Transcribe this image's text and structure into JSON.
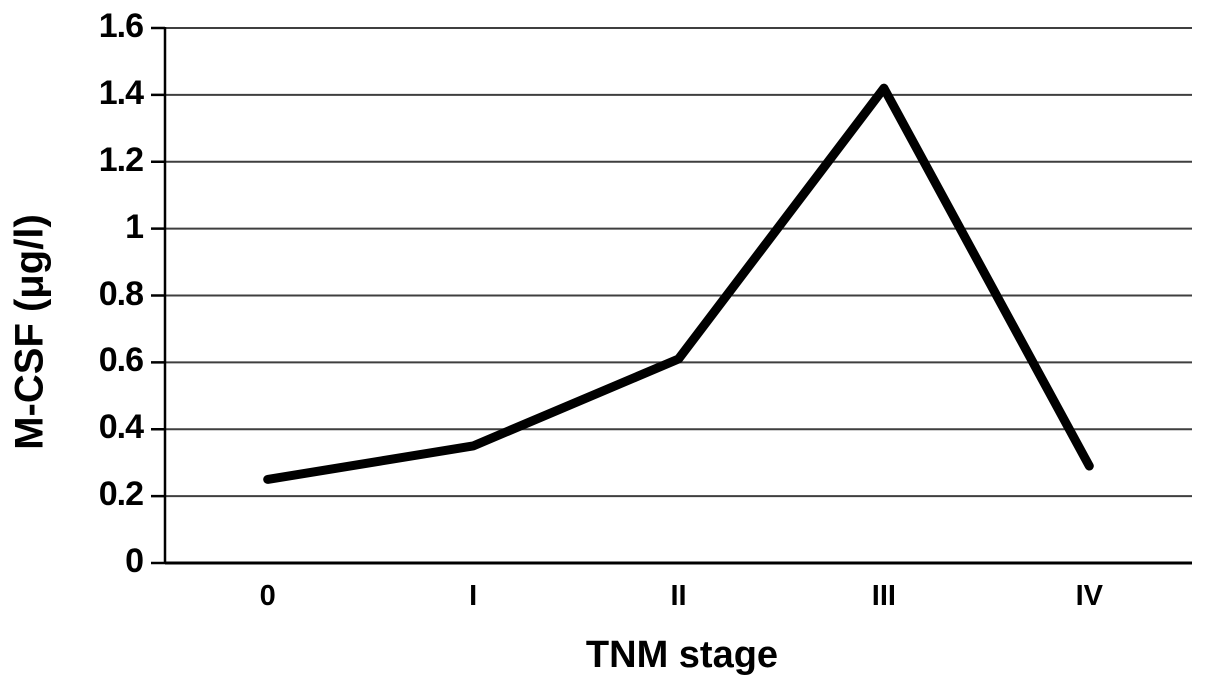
{
  "chart_data": {
    "type": "line",
    "title": "",
    "categories": [
      "0",
      "I",
      "II",
      "III",
      "IV"
    ],
    "series": [
      {
        "name": "M-CSF",
        "values": [
          0.25,
          0.35,
          0.61,
          1.42,
          0.29
        ]
      }
    ],
    "xlabel": "TNM stage",
    "ylabel": "M-CSF (μg/l)",
    "ylim": [
      0,
      1.6
    ],
    "ytick_step": 0.2,
    "ytick_labels": [
      "0",
      "0.2",
      "0.4",
      "0.6",
      "0.8",
      "1",
      "1.2",
      "1.4",
      "1.6"
    ],
    "grid": true,
    "legend_position": "none",
    "line_color": "#000000",
    "axis_color": "#000000",
    "grid_color": "#3f3f3f",
    "background_color": "#ffffff"
  }
}
